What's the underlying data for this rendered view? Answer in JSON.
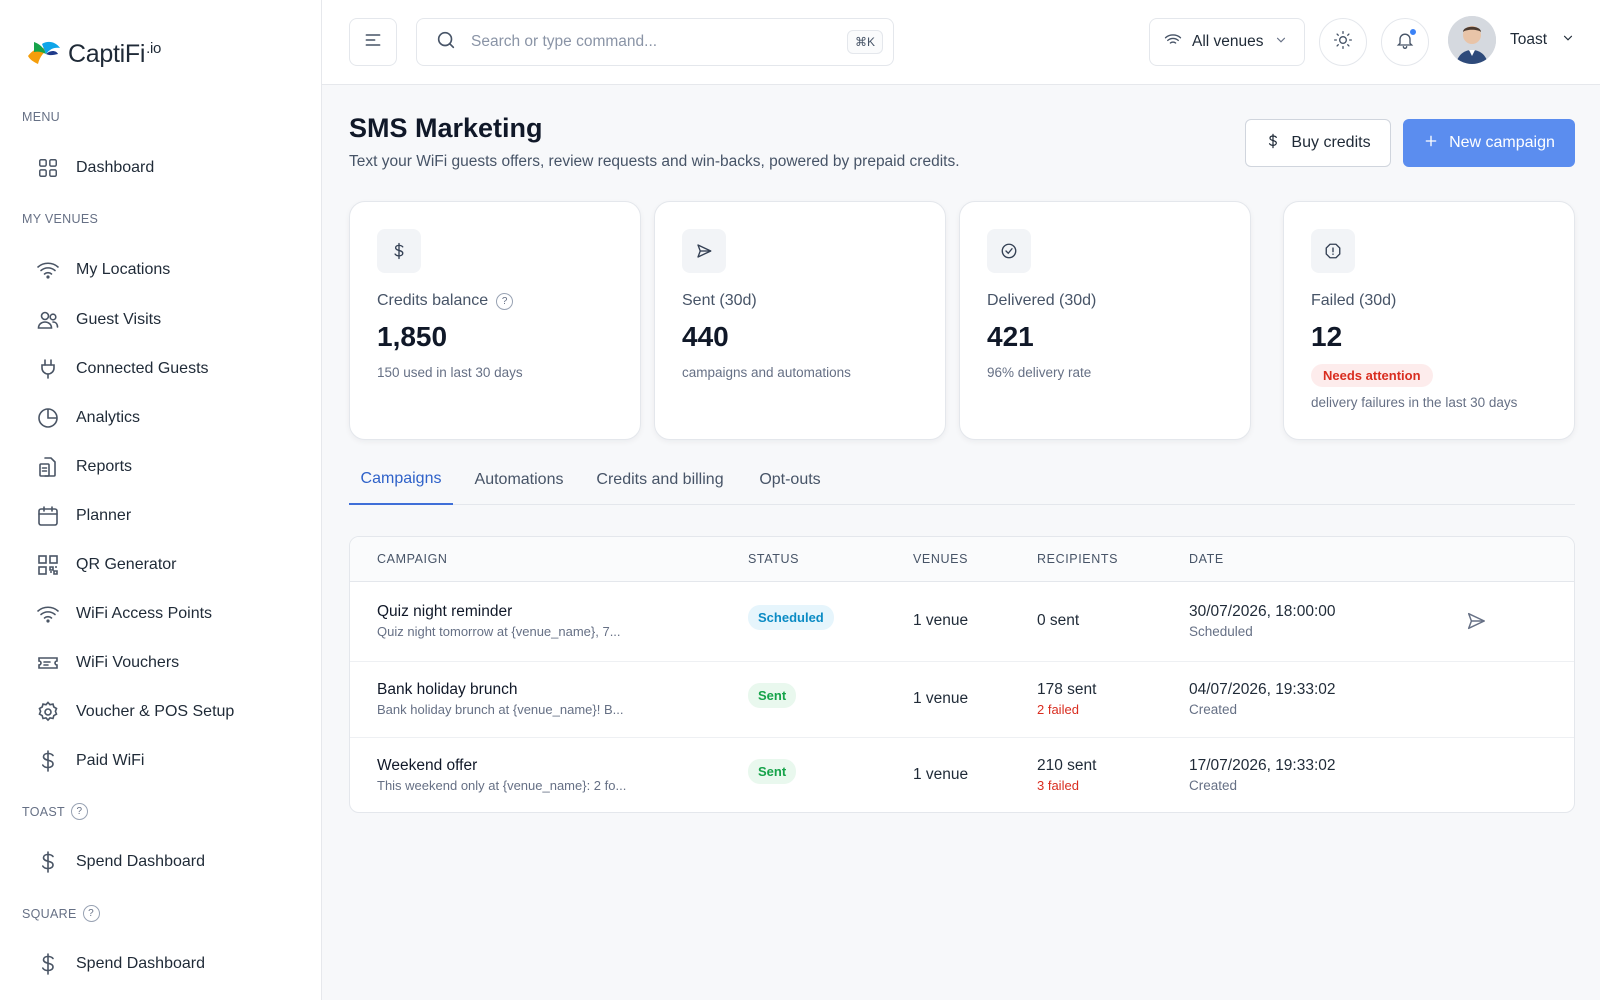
{
  "app": {
    "logo_text": "CaptiFi",
    "logo_suffix": ".io"
  },
  "sidebar": {
    "menu_label": "MENU",
    "dashboard": "Dashboard",
    "venues_label": "MY VENUES",
    "items": [
      {
        "label": "My Locations",
        "icon": "wifi-icon"
      },
      {
        "label": "Guest Visits",
        "icon": "users-icon"
      },
      {
        "label": "Connected Guests",
        "icon": "plug-icon"
      },
      {
        "label": "Analytics",
        "icon": "pie-chart-icon"
      },
      {
        "label": "Reports",
        "icon": "document-icon"
      },
      {
        "label": "Planner",
        "icon": "calendar-icon"
      },
      {
        "label": "QR Generator",
        "icon": "qr-code-icon"
      },
      {
        "label": "WiFi Access Points",
        "icon": "wifi-icon"
      },
      {
        "label": "WiFi Vouchers",
        "icon": "ticket-icon"
      },
      {
        "label": "Voucher & POS Setup",
        "icon": "gear-icon"
      },
      {
        "label": "Paid WiFi",
        "icon": "dollar-icon"
      }
    ],
    "toast_label": "TOAST",
    "toast_item": "Spend Dashboard",
    "square_label": "SQUARE",
    "square_item": "Spend Dashboard",
    "help_glyph": "?"
  },
  "topbar": {
    "search_placeholder": "Search or type command...",
    "search_shortcut": "⌘K",
    "venue_select": "All venues",
    "user_name": "Toast"
  },
  "page": {
    "title": "SMS Marketing",
    "subtitle": "Text your WiFi guests offers, review requests and win-backs, powered by prepaid credits.",
    "buy_credits": "Buy credits",
    "new_campaign": "New campaign"
  },
  "stats": [
    {
      "label": "Credits balance",
      "value": "1,850",
      "note": "150 used in last 30 days",
      "icon": "dollar-icon"
    },
    {
      "label": "Sent (30d)",
      "value": "440",
      "note": "campaigns and automations",
      "icon": "send-icon"
    },
    {
      "label": "Delivered (30d)",
      "value": "421",
      "note": "96% delivery rate",
      "icon": "check-circle-icon"
    },
    {
      "label": "Failed (30d)",
      "value": "12",
      "badge": "Needs attention",
      "note": "delivery failures in the last 30 days",
      "icon": "alert-icon"
    }
  ],
  "tabs": [
    "Campaigns",
    "Automations",
    "Credits and billing",
    "Opt-outs"
  ],
  "table": {
    "headers": [
      "CAMPAIGN",
      "STATUS",
      "VENUES",
      "RECIPIENTS",
      "DATE"
    ],
    "rows": [
      {
        "name": "Quiz night reminder",
        "desc": "Quiz night tomorrow at {venue_name}, 7...",
        "status": "Scheduled",
        "venues": "1 venue",
        "recipients": "0 sent",
        "failed": "",
        "date": "30/07/2026, 18:00:00",
        "date_sub": "Scheduled"
      },
      {
        "name": "Bank holiday brunch",
        "desc": "Bank holiday brunch at {venue_name}! B...",
        "status": "Sent",
        "venues": "1 venue",
        "recipients": "178 sent",
        "failed": "2 failed",
        "date": "04/07/2026, 19:33:02",
        "date_sub": "Created"
      },
      {
        "name": "Weekend offer",
        "desc": "This weekend only at {venue_name}: 2 fo...",
        "status": "Sent",
        "venues": "1 venue",
        "recipients": "210 sent",
        "failed": "3 failed",
        "date": "17/07/2026, 19:33:02",
        "date_sub": "Created"
      }
    ]
  },
  "colors": {
    "accent": "#5b8def",
    "tab_active": "#2f62c9",
    "danger": "#d92d20",
    "success": "#16a34a",
    "info": "#0b8bc4"
  }
}
